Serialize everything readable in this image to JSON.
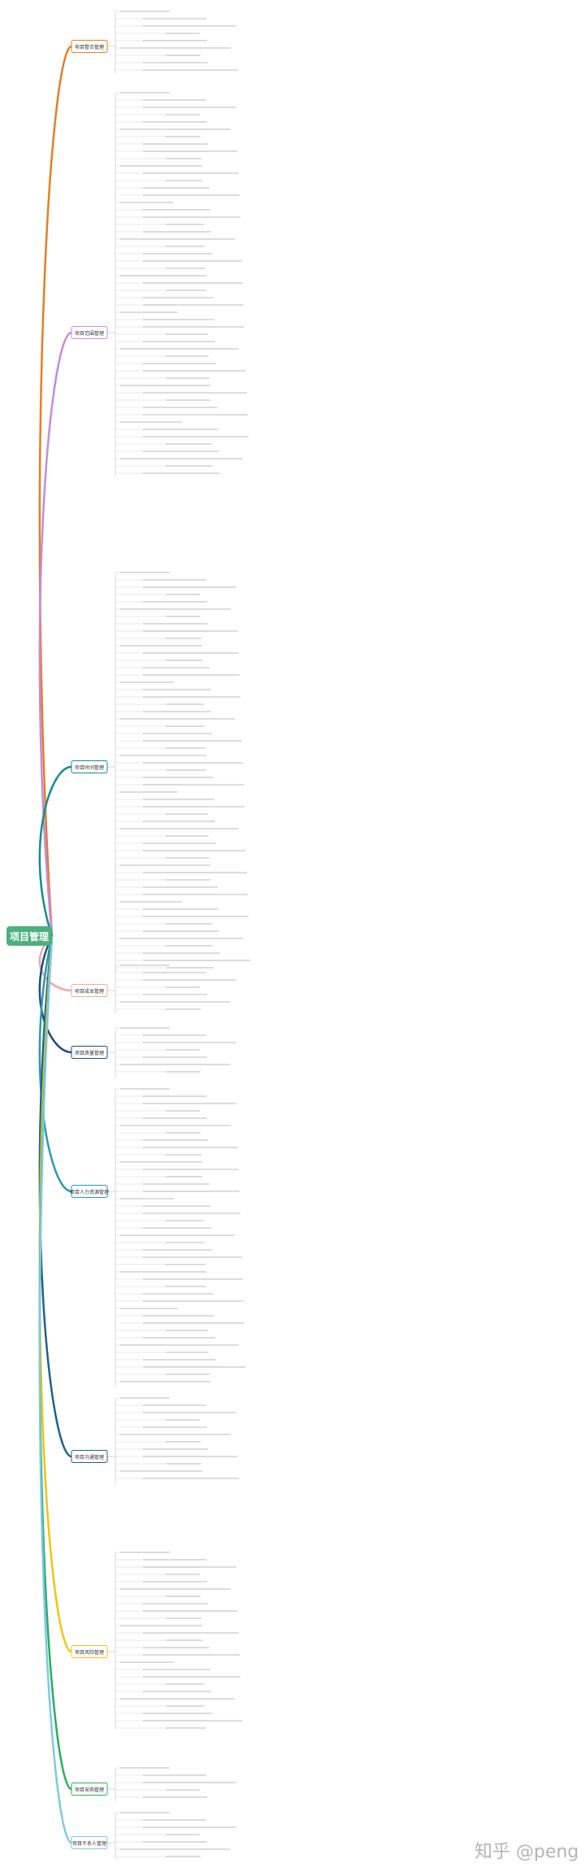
{
  "central_topic": "项目管理",
  "branches": [
    {
      "label": "项目整合管理",
      "color": "#E67E22"
    },
    {
      "label": "项目范围管理",
      "color": "#C48BE0"
    },
    {
      "label": "项目时间管理",
      "color": "#138D90"
    },
    {
      "label": "项目成本管理",
      "color": "#F4A6A6"
    },
    {
      "label": "项目质量管理",
      "color": "#1F4E79"
    },
    {
      "label": "项目人力资源管理",
      "color": "#2C9AAE"
    },
    {
      "label": "项目沟通管理",
      "color": "#21618C"
    },
    {
      "label": "项目风险管理",
      "color": "#F1C40F"
    },
    {
      "label": "项目采购管理",
      "color": "#27AE60"
    },
    {
      "label": "项目干系人管理",
      "color": "#7EC8E3"
    }
  ],
  "watermark": "知乎 @peng"
}
